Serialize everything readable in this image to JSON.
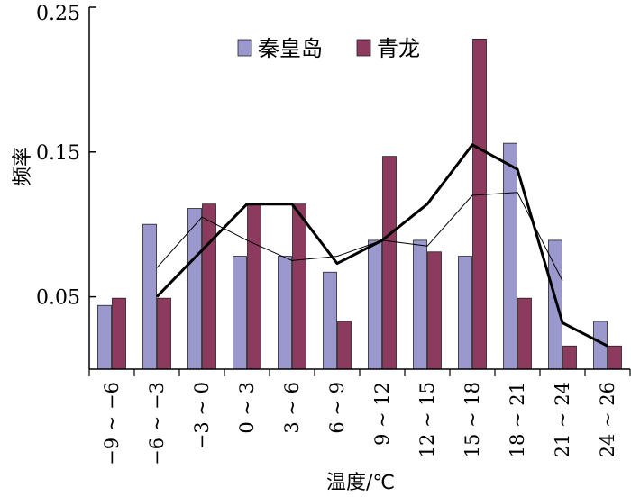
{
  "chart_data": {
    "type": "bar",
    "categories": [
      "−9 ~ −6",
      "−6 ~ −3",
      "−3 ~ 0",
      "0 ~ 3",
      "3 ~ 6",
      "6 ~ 9",
      "9 ~ 12",
      "12 ~ 15",
      "15 ~ 18",
      "18 ~ 21",
      "21 ~ 24",
      "24 ~ 26"
    ],
    "series": [
      {
        "name": "秦皇岛",
        "values": [
          0.044,
          0.1,
          0.111,
          0.078,
          0.078,
          0.067,
          0.089,
          0.089,
          0.078,
          0.156,
          0.089,
          0.033
        ],
        "color": "#9a98cc"
      },
      {
        "name": "青龙",
        "values": [
          0.049,
          0.049,
          0.114,
          0.114,
          0.114,
          0.033,
          0.147,
          0.081,
          0.228,
          0.049,
          0.016,
          0.016
        ],
        "color": "#8c3a5e"
      }
    ],
    "lines": [
      {
        "of": "秦皇岛",
        "style": "thin",
        "x_start": 1,
        "values": [
          0.07,
          0.105,
          0.089,
          0.075,
          0.078,
          0.089,
          0.085,
          0.12,
          0.122,
          0.061
        ]
      },
      {
        "of": "青龙",
        "style": "thick",
        "x_start": 1,
        "values": [
          0.05,
          0.082,
          0.114,
          0.114,
          0.073,
          0.089,
          0.114,
          0.155,
          0.138,
          0.032,
          0.016
        ]
      }
    ],
    "ylabel": "频率",
    "xlabel": "温度/℃",
    "ylim": [
      0,
      0.25
    ],
    "yticks": [
      "0.05",
      "0.15",
      "0.25"
    ],
    "ytick_values": [
      0.05,
      0.15,
      0.25
    ],
    "legend_position": "top-center",
    "grid": false
  }
}
